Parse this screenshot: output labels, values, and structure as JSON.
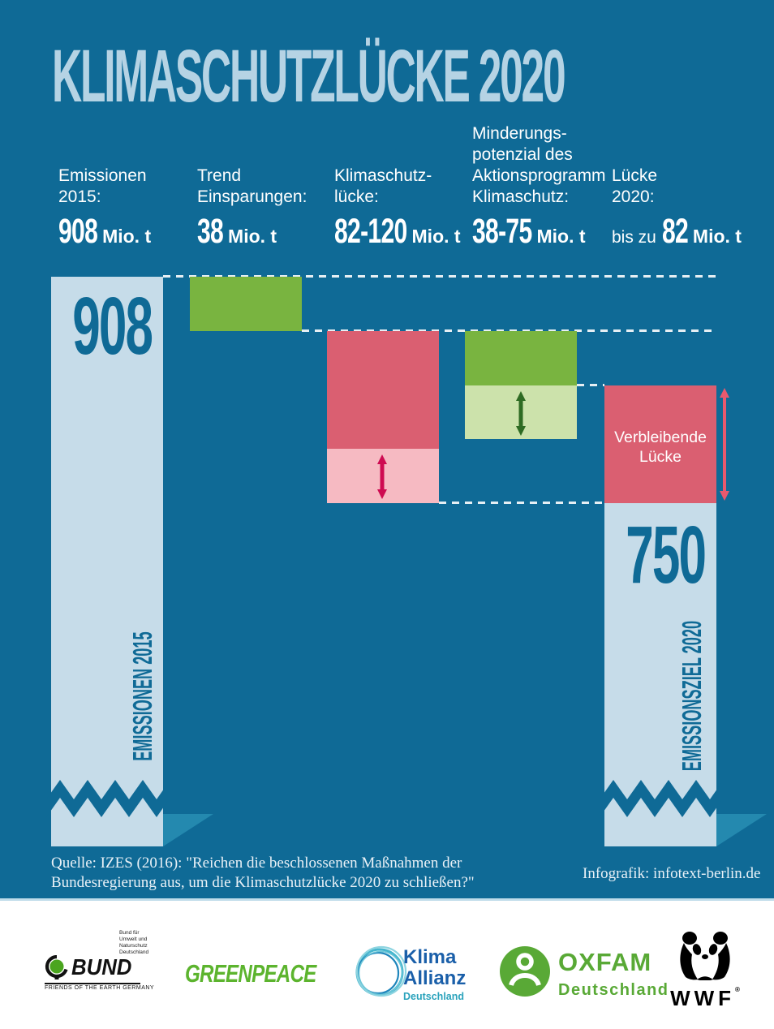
{
  "title": "KLIMASCHUTZLÜCKE 2020",
  "header_columns": [
    {
      "label": "Emissionen\n2015:",
      "prefix": "",
      "value": "908",
      "unit": "Mio. t"
    },
    {
      "label": "Trend\nEinsparungen:",
      "prefix": "",
      "value": "38",
      "unit": "Mio. t"
    },
    {
      "label": "Klimaschutz-\nlücke:",
      "prefix": "",
      "value": "82-120",
      "unit": "Mio. t"
    },
    {
      "label": "Minderungs-\npotenzial des\nAktionsprogramm\nKlimaschutz:",
      "prefix": "",
      "value": "38-75",
      "unit": "Mio. t"
    },
    {
      "label": "Lücke\n2020:",
      "prefix": "bis zu",
      "value": "82",
      "unit": "Mio. t"
    }
  ],
  "chart_data": {
    "type": "waterfall",
    "title": "Klimaschutzlücke 2020",
    "unit": "Mio. t",
    "columns": [
      "Emissionen 2015",
      "Trend Einsparungen",
      "Klimaschutzlücke",
      "Minderungspotenzial des Aktionsprogramm Klimaschutz",
      "Lücke 2020"
    ],
    "values": {
      "emissionen_2015": 908,
      "trend_einsparungen": 38,
      "klimaschutzluecke": [
        82,
        120
      ],
      "minderungspotenzial": [
        38,
        75
      ],
      "verbleibende_luecke_bis_zu": 82,
      "emissionsziel_2020": 750
    },
    "levels": {
      "start": 908,
      "after_trend": 870,
      "potential_secured_level": 832,
      "potential_max_level": 795,
      "gap_min_level": 788,
      "target": 750
    },
    "bar_labels": {
      "start_value": "908",
      "start_axis": "EMISSIONEN 2015",
      "remaining_gap": "Verbleibende\nLücke",
      "target_value": "750",
      "target_axis": "EMISSIONSZIEL 2020"
    },
    "colors": {
      "background": "#0F6A96",
      "bar_light_blue": "#C6DCE9",
      "green": "#79B440",
      "green_light": "#CCE2AB",
      "green_arrow": "#2E6B23",
      "red": "#DA5F71",
      "red_light": "#F6BAC2",
      "red_arrow": "#CE0B51",
      "gap_arrow": "#E8596E",
      "dashed_line": "#E6EFF4",
      "bar_text": "#0F6A96",
      "fold": "#2489AF"
    }
  },
  "source": {
    "quelle": "Quelle: IZES (2016):  \"Reichen die beschlossenen Maßnahmen der\nBundesregierung aus, um die Klimaschutzlücke 2020 zu schließen?\"",
    "credit": "Infografik: infotext-berlin.de"
  },
  "footer": {
    "bund": {
      "small_text": "Bund für\nUmwelt und\nNaturschutz\nDeutschland",
      "name": "BUND",
      "subtitle": "FRIENDS OF THE EARTH GERMANY"
    },
    "greenpeace": {
      "name": "GREENPEACE"
    },
    "klima_allianz": {
      "line1": "Klima",
      "line2": "Allianz",
      "line3": "Deutschland"
    },
    "oxfam": {
      "name": "OXFAM",
      "subtitle": "Deutschland"
    },
    "wwf": {
      "name": "WWF",
      "reg": "®"
    }
  }
}
